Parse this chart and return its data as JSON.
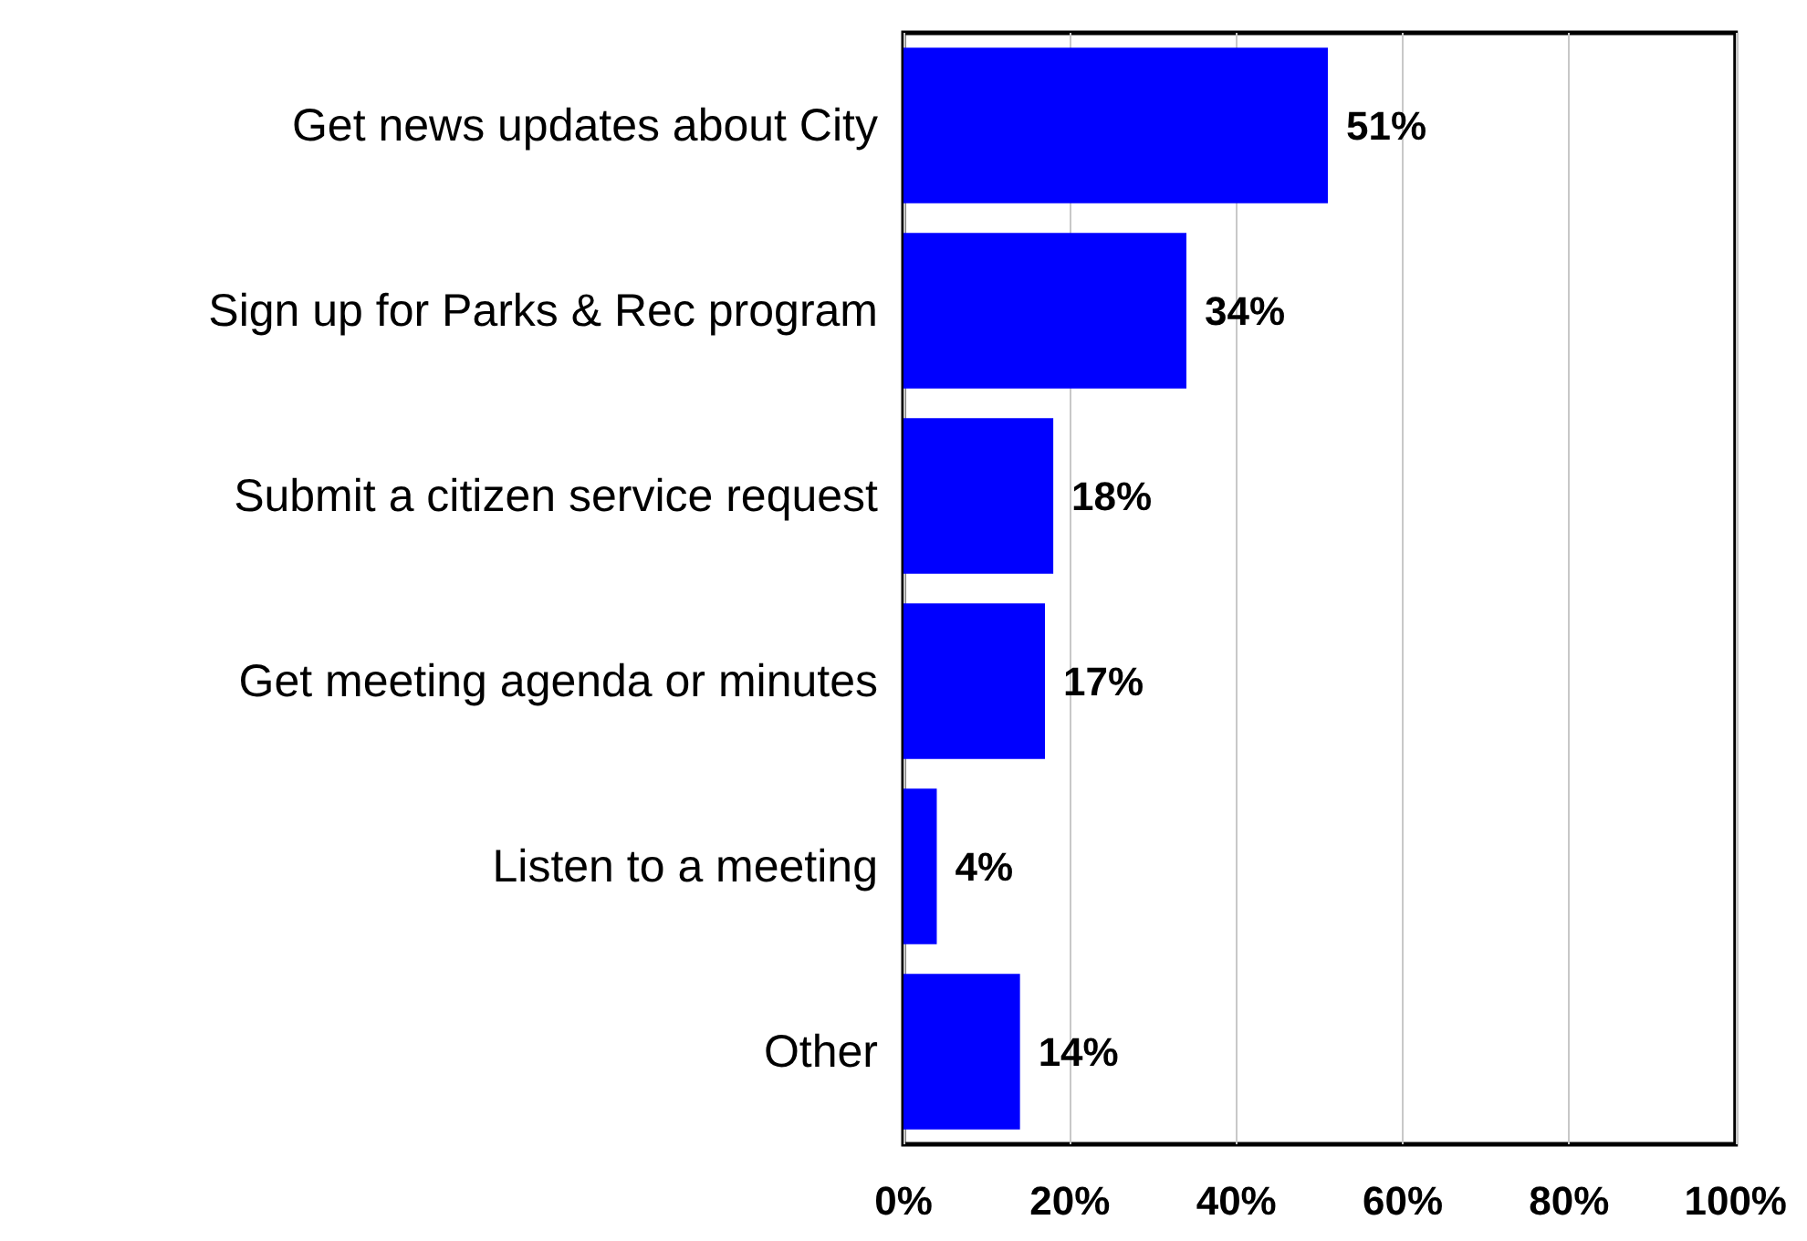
{
  "chart_data": {
    "type": "bar",
    "orientation": "horizontal",
    "categories": [
      "Get news updates about City",
      "Sign up for Parks & Rec program",
      "Submit a citizen service request",
      "Get meeting agenda or minutes",
      "Listen to a meeting",
      "Other"
    ],
    "values": [
      51,
      34,
      18,
      17,
      4,
      14
    ],
    "value_labels": [
      "51%",
      "34%",
      "18%",
      "17%",
      "4%",
      "14%"
    ],
    "color": "#0000ff",
    "xlim": [
      0,
      100
    ],
    "xticks": [
      {
        "value": 0,
        "label": "0%"
      },
      {
        "value": 20,
        "label": "20%"
      },
      {
        "value": 40,
        "label": "40%"
      },
      {
        "value": 60,
        "label": "60%"
      },
      {
        "value": 80,
        "label": "80%"
      },
      {
        "value": 100,
        "label": "100%"
      }
    ],
    "grid": "x"
  }
}
